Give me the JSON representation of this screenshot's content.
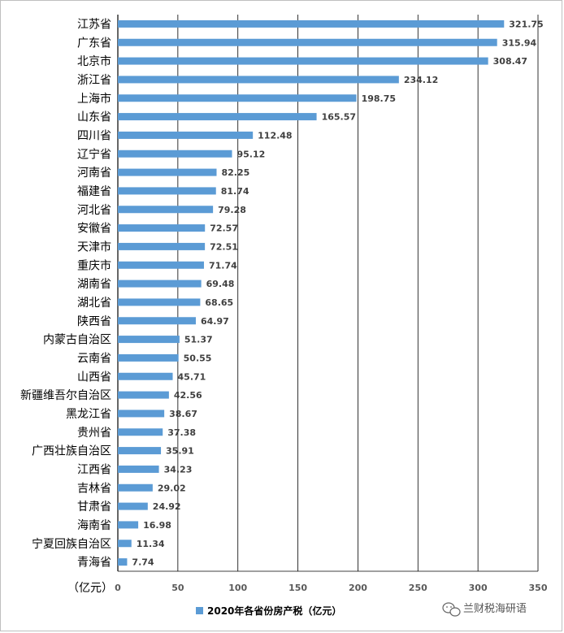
{
  "chart_data": {
    "type": "bar",
    "orientation": "horizontal",
    "categories": [
      "江苏省",
      "广东省",
      "北京市",
      "浙江省",
      "上海市",
      "山东省",
      "四川省",
      "辽宁省",
      "河南省",
      "福建省",
      "河北省",
      "安徽省",
      "天津市",
      "重庆市",
      "湖南省",
      "湖北省",
      "陕西省",
      "内蒙古自治区",
      "云南省",
      "山西省",
      "新疆维吾尔自治区",
      "黑龙江省",
      "贵州省",
      "广西壮族自治区",
      "江西省",
      "吉林省",
      "甘肃省",
      "海南省",
      "宁夏回族自治区",
      "青海省"
    ],
    "series": [
      {
        "name": "2020年各省份房产税（亿元）",
        "values": [
          321.75,
          315.94,
          308.47,
          234.12,
          198.75,
          165.57,
          112.48,
          95.12,
          82.25,
          81.74,
          79.28,
          72.57,
          72.51,
          71.74,
          69.48,
          68.65,
          64.97,
          51.37,
          50.55,
          45.71,
          42.56,
          38.67,
          37.38,
          35.91,
          34.23,
          29.02,
          24.92,
          16.98,
          11.34,
          7.74
        ],
        "value_labels": [
          "321.75",
          "315.94",
          "308.47",
          "234.12",
          "198.75",
          "165.57",
          "112.48",
          "95.12",
          "82.25",
          "81.74",
          "79.28",
          "72.57",
          "72.51",
          "71.74",
          "69.48",
          "68.65",
          "64.97",
          "51.37",
          "50.55",
          "45.71",
          "42.56",
          "38.67",
          "37.38",
          "35.91",
          "34.23",
          "29.02",
          "24.92",
          "16.98",
          "11.34",
          "7.74"
        ],
        "color": "#5b9bd5"
      }
    ],
    "highlight_category": "甘肃省",
    "highlight_label_color": "#e00000",
    "xlim": [
      0,
      350
    ],
    "xticks": [
      0,
      50,
      100,
      150,
      200,
      250,
      300,
      350
    ],
    "xtick_labels": [
      "0",
      "50",
      "100",
      "150",
      "200",
      "250",
      "300",
      "350"
    ],
    "x_unit_label": "（亿元）",
    "grid": "vertical",
    "legend_position": "bottom-center",
    "label_color": "#404040",
    "tick_color": "#595959",
    "grid_color": "#000000"
  },
  "watermark": {
    "icon": "wechat-icon",
    "text": "兰财税海研语"
  }
}
